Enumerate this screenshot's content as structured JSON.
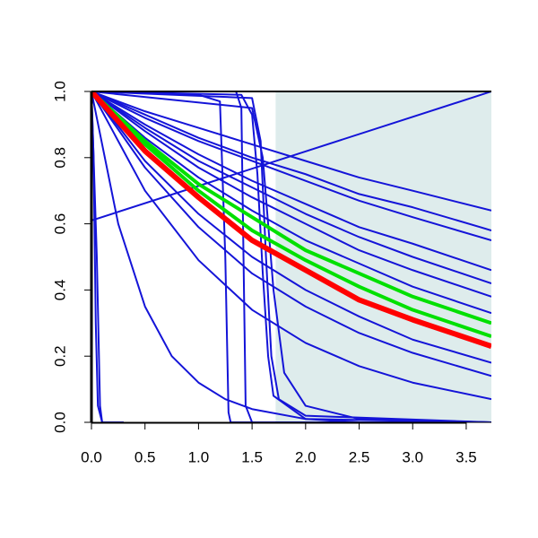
{
  "chart_data": {
    "type": "line",
    "xlim": [
      0,
      3.735
    ],
    "ylim": [
      0,
      1
    ],
    "xticks": [
      {
        "value": 0,
        "label": "0.0"
      },
      0.5,
      {
        "value": 1,
        "label": "1.0"
      },
      1.5,
      {
        "value": 2,
        "label": "2.0"
      },
      2.5,
      {
        "value": 3,
        "label": "3.0"
      },
      3.5
    ],
    "yticks": [
      {
        "value": 0,
        "label": "0.0"
      },
      0.2,
      0.4,
      0.6,
      0.8,
      {
        "value": 1,
        "label": "1.0"
      }
    ],
    "shaded_region": {
      "x": [
        1.72,
        3.735
      ],
      "color": "#deecec"
    },
    "series": [
      {
        "color": "#1414d8",
        "width": 2,
        "x": [
          0,
          0.5,
          1,
          1.5,
          2,
          2.5,
          3,
          3.735
        ],
        "values": [
          1,
          0.94,
          0.89,
          0.84,
          0.79,
          0.74,
          0.7,
          0.64
        ]
      },
      {
        "color": "#1414d8",
        "width": 2,
        "x": [
          0,
          0.5,
          1,
          1.5,
          2,
          2.5,
          3,
          3.735
        ],
        "values": [
          1,
          0.93,
          0.86,
          0.8,
          0.75,
          0.69,
          0.65,
          0.58
        ]
      },
      {
        "color": "#1414d8",
        "width": 2,
        "x": [
          0,
          0.5,
          1,
          1.5,
          2,
          2.5,
          3,
          3.735
        ],
        "values": [
          1,
          0.92,
          0.85,
          0.79,
          0.73,
          0.67,
          0.62,
          0.55
        ]
      },
      {
        "color": "#1414d8",
        "width": 2,
        "x": [
          0,
          0.5,
          1,
          1.5,
          2,
          2.5,
          3,
          3.735
        ],
        "values": [
          1,
          0.9,
          0.81,
          0.73,
          0.66,
          0.59,
          0.54,
          0.46
        ]
      },
      {
        "color": "#1414d8",
        "width": 2,
        "x": [
          0,
          0.5,
          1,
          1.5,
          2,
          2.5,
          3,
          3.735
        ],
        "values": [
          1,
          0.89,
          0.79,
          0.71,
          0.63,
          0.56,
          0.5,
          0.42
        ]
      },
      {
        "color": "#1414d8",
        "width": 2,
        "x": [
          0,
          0.5,
          1,
          1.5,
          2,
          2.5,
          3,
          3.735
        ],
        "values": [
          1,
          0.88,
          0.77,
          0.68,
          0.6,
          0.52,
          0.46,
          0.38
        ]
      },
      {
        "color": "#1414d8",
        "width": 2,
        "x": [
          0,
          0.5,
          1,
          1.5,
          2,
          2.5,
          3,
          3.735
        ],
        "values": [
          1,
          0.86,
          0.74,
          0.64,
          0.55,
          0.48,
          0.41,
          0.33
        ]
      },
      {
        "color": "#1414d8",
        "width": 2,
        "x": [
          0,
          0.5,
          1,
          1.5,
          2,
          2.5,
          3,
          3.735
        ],
        "values": [
          1,
          0.79,
          0.63,
          0.5,
          0.4,
          0.32,
          0.25,
          0.18
        ]
      },
      {
        "color": "#1414d8",
        "width": 2,
        "x": [
          0,
          0.5,
          1,
          1.5,
          2,
          2.5,
          3,
          3.735
        ],
        "values": [
          1,
          0.77,
          0.59,
          0.45,
          0.35,
          0.27,
          0.21,
          0.14
        ]
      },
      {
        "color": "#1414d8",
        "width": 2,
        "x": [
          0,
          0.5,
          1,
          1.5,
          2,
          2.5,
          3,
          3.735
        ],
        "values": [
          1,
          0.7,
          0.49,
          0.34,
          0.24,
          0.17,
          0.12,
          0.07
        ]
      },
      {
        "color": "#1414d8",
        "width": 2,
        "x": [
          0,
          3.735
        ],
        "values": [
          0.61,
          1
        ]
      },
      {
        "color": "#1414d8",
        "width": 2,
        "x": [
          0,
          0.25,
          0.5,
          0.75,
          1,
          1.25,
          1.5,
          2,
          2.5
        ],
        "values": [
          1,
          0.6,
          0.35,
          0.2,
          0.12,
          0.07,
          0.04,
          0.01,
          0
        ]
      },
      {
        "color": "#1414d8",
        "width": 2,
        "x": [
          0,
          0.02,
          0.04,
          0.06,
          0.1,
          0.3
        ],
        "values": [
          1,
          0.8,
          0.3,
          0.05,
          0,
          0
        ]
      },
      {
        "color": "#1414d8",
        "width": 2,
        "x": [
          0,
          0.05,
          0.08,
          0.1,
          0.3
        ],
        "values": [
          1,
          0.5,
          0.05,
          0,
          0
        ]
      },
      {
        "color": "#1414d8",
        "width": 2,
        "x": [
          0,
          1,
          1.2,
          1.25,
          1.28,
          1.3,
          1.4,
          3.735
        ],
        "values": [
          1,
          0.99,
          0.97,
          0.5,
          0.03,
          0,
          0,
          0
        ]
      },
      {
        "color": "#1414d8",
        "width": 2,
        "x": [
          0,
          1.35,
          1.4,
          1.42,
          1.44,
          1.5,
          3.735
        ],
        "values": [
          1,
          1,
          0.95,
          0.5,
          0.05,
          0,
          0
        ]
      },
      {
        "color": "#1414d8",
        "width": 2,
        "x": [
          0,
          1.4,
          1.5,
          1.55,
          1.6,
          1.65,
          1.7,
          2,
          3.735
        ],
        "values": [
          1,
          0.99,
          0.93,
          0.75,
          0.45,
          0.2,
          0.08,
          0.01,
          0
        ]
      },
      {
        "color": "#1414d8",
        "width": 2,
        "x": [
          0,
          1.5,
          1.58,
          1.63,
          1.68,
          1.75,
          2,
          3.735
        ],
        "values": [
          1,
          0.98,
          0.85,
          0.5,
          0.2,
          0.07,
          0.02,
          0
        ]
      },
      {
        "color": "#1414d8",
        "width": 2,
        "x": [
          0,
          1.5,
          1.6,
          1.7,
          1.8,
          2,
          2.5,
          3.735
        ],
        "values": [
          1,
          0.95,
          0.8,
          0.4,
          0.15,
          0.05,
          0.01,
          0
        ]
      },
      {
        "color": "#00e000",
        "width": 4,
        "x": [
          0,
          0.5,
          1,
          1.5,
          2,
          2.5,
          3,
          3.735
        ],
        "values": [
          1,
          0.85,
          0.72,
          0.62,
          0.52,
          0.45,
          0.38,
          0.3
        ]
      },
      {
        "color": "#00e000",
        "width": 4,
        "x": [
          0,
          0.5,
          1,
          1.5,
          2,
          2.5,
          3,
          3.735
        ],
        "values": [
          1,
          0.84,
          0.7,
          0.58,
          0.49,
          0.41,
          0.34,
          0.26
        ]
      },
      {
        "color": "#ff0000",
        "width": 6,
        "x": [
          0,
          0.5,
          1,
          1.5,
          2,
          2.5,
          3,
          3.735
        ],
        "values": [
          1,
          0.82,
          0.68,
          0.55,
          0.46,
          0.37,
          0.31,
          0.23
        ]
      }
    ]
  }
}
